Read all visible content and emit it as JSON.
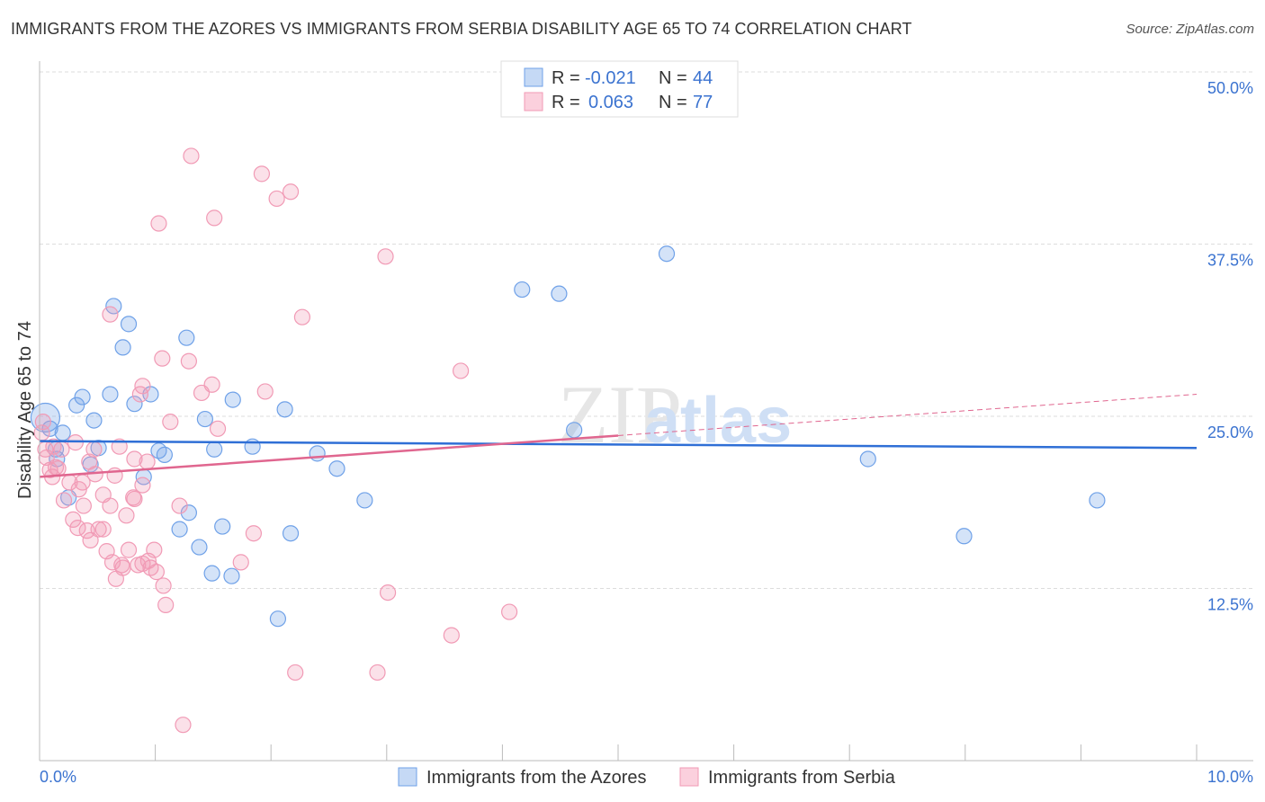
{
  "chart_data": {
    "type": "scatter",
    "title": "IMMIGRANTS FROM THE AZORES VS IMMIGRANTS FROM SERBIA DISABILITY AGE 65 TO 74 CORRELATION CHART",
    "source": "Source: ZipAtlas.com",
    "xlabel": "",
    "ylabel": "Disability Age 65 to 74",
    "xlim": [
      0,
      10
    ],
    "ylim": [
      0,
      50
    ],
    "x_tick_labels": [
      "0.0%",
      "10.0%"
    ],
    "y_ticks": [
      12.5,
      25.0,
      37.5,
      50.0
    ],
    "y_tick_labels": [
      "12.5%",
      "25.0%",
      "37.5%",
      "50.0%"
    ],
    "grid": true,
    "watermark": "ZIPatlas",
    "legend_stats": [
      {
        "r_label": "R =",
        "r": "-0.021",
        "n_label": "N =",
        "n": "44"
      },
      {
        "r_label": "R =",
        "r": "0.063",
        "n_label": "N =",
        "n": "77"
      }
    ],
    "series": [
      {
        "name": "Immigrants from the Azores",
        "color": "#6fa1e8",
        "line_color": "#2f6fd6",
        "trend": {
          "x": [
            0,
            10
          ],
          "y": [
            23.2,
            22.7
          ]
        },
        "points": [
          [
            0.05,
            24.9
          ],
          [
            0.09,
            24.1
          ],
          [
            0.2,
            23.8
          ],
          [
            0.37,
            26.4
          ],
          [
            0.32,
            25.8
          ],
          [
            0.25,
            19.1
          ],
          [
            0.47,
            24.7
          ],
          [
            0.51,
            22.7
          ],
          [
            0.44,
            21.5
          ],
          [
            0.15,
            21.9
          ],
          [
            0.61,
            26.6
          ],
          [
            0.64,
            33.0
          ],
          [
            0.77,
            31.7
          ],
          [
            0.72,
            30.0
          ],
          [
            0.82,
            25.9
          ],
          [
            0.96,
            26.6
          ],
          [
            0.9,
            20.6
          ],
          [
            1.03,
            22.5
          ],
          [
            1.08,
            22.2
          ],
          [
            1.27,
            30.7
          ],
          [
            1.29,
            18.0
          ],
          [
            1.43,
            24.8
          ],
          [
            1.51,
            22.6
          ],
          [
            1.67,
            26.2
          ],
          [
            1.84,
            22.8
          ],
          [
            2.12,
            25.5
          ],
          [
            2.4,
            22.3
          ],
          [
            2.57,
            21.2
          ],
          [
            2.81,
            18.9
          ],
          [
            1.21,
            16.8
          ],
          [
            1.38,
            15.5
          ],
          [
            1.49,
            13.6
          ],
          [
            1.58,
            17.0
          ],
          [
            1.66,
            13.4
          ],
          [
            2.17,
            16.5
          ],
          [
            2.06,
            10.3
          ],
          [
            4.17,
            34.2
          ],
          [
            4.49,
            33.9
          ],
          [
            4.62,
            24.0
          ],
          [
            5.42,
            36.8
          ],
          [
            7.16,
            21.9
          ],
          [
            7.99,
            16.3
          ],
          [
            9.14,
            18.9
          ],
          [
            0.14,
            22.6
          ]
        ]
      },
      {
        "name": "Immigrants from Serbia",
        "color": "#f19ab5",
        "line_color": "#e0668f",
        "trend": {
          "x": [
            0,
            5,
            10
          ],
          "y": [
            20.6,
            23.6,
            26.6
          ]
        },
        "points": [
          [
            1.31,
            43.9
          ],
          [
            1.92,
            42.6
          ],
          [
            2.17,
            41.3
          ],
          [
            2.05,
            40.8
          ],
          [
            1.03,
            39.0
          ],
          [
            1.51,
            39.4
          ],
          [
            2.99,
            36.6
          ],
          [
            0.61,
            32.4
          ],
          [
            2.27,
            32.2
          ],
          [
            3.64,
            28.3
          ],
          [
            1.06,
            29.2
          ],
          [
            1.29,
            29.0
          ],
          [
            0.89,
            27.2
          ],
          [
            0.87,
            26.6
          ],
          [
            1.49,
            27.3
          ],
          [
            1.4,
            26.7
          ],
          [
            1.95,
            26.8
          ],
          [
            1.13,
            24.6
          ],
          [
            1.54,
            24.1
          ],
          [
            0.31,
            23.1
          ],
          [
            0.12,
            22.8
          ],
          [
            0.19,
            22.6
          ],
          [
            0.69,
            22.8
          ],
          [
            0.47,
            22.6
          ],
          [
            0.82,
            21.9
          ],
          [
            0.93,
            21.7
          ],
          [
            0.06,
            22.0
          ],
          [
            0.09,
            21.1
          ],
          [
            0.14,
            21.3
          ],
          [
            0.43,
            21.7
          ],
          [
            0.26,
            20.2
          ],
          [
            0.37,
            20.2
          ],
          [
            0.34,
            19.7
          ],
          [
            0.48,
            20.8
          ],
          [
            0.65,
            20.7
          ],
          [
            0.89,
            20.0
          ],
          [
            0.55,
            19.3
          ],
          [
            0.81,
            19.1
          ],
          [
            0.21,
            18.9
          ],
          [
            0.38,
            18.5
          ],
          [
            0.61,
            18.5
          ],
          [
            0.82,
            19.0
          ],
          [
            0.29,
            17.5
          ],
          [
            0.33,
            16.9
          ],
          [
            0.75,
            17.8
          ],
          [
            1.21,
            18.5
          ],
          [
            0.55,
            16.8
          ],
          [
            0.44,
            16.0
          ],
          [
            1.85,
            16.5
          ],
          [
            0.77,
            15.3
          ],
          [
            0.99,
            15.3
          ],
          [
            0.63,
            14.4
          ],
          [
            0.72,
            14.0
          ],
          [
            0.85,
            14.2
          ],
          [
            0.94,
            14.5
          ],
          [
            0.96,
            14.0
          ],
          [
            1.01,
            13.7
          ],
          [
            0.66,
            13.2
          ],
          [
            1.07,
            12.7
          ],
          [
            1.74,
            14.4
          ],
          [
            1.09,
            11.3
          ],
          [
            3.01,
            12.2
          ],
          [
            4.06,
            10.8
          ],
          [
            3.56,
            9.1
          ],
          [
            2.21,
            6.4
          ],
          [
            2.92,
            6.4
          ],
          [
            1.24,
            2.6
          ],
          [
            0.16,
            21.2
          ],
          [
            0.11,
            20.6
          ],
          [
            0.02,
            23.8
          ],
          [
            0.51,
            16.8
          ],
          [
            0.41,
            16.7
          ],
          [
            0.71,
            14.2
          ],
          [
            0.89,
            14.3
          ],
          [
            0.58,
            15.2
          ],
          [
            0.05,
            22.6
          ],
          [
            0.03,
            24.6
          ]
        ]
      }
    ]
  }
}
